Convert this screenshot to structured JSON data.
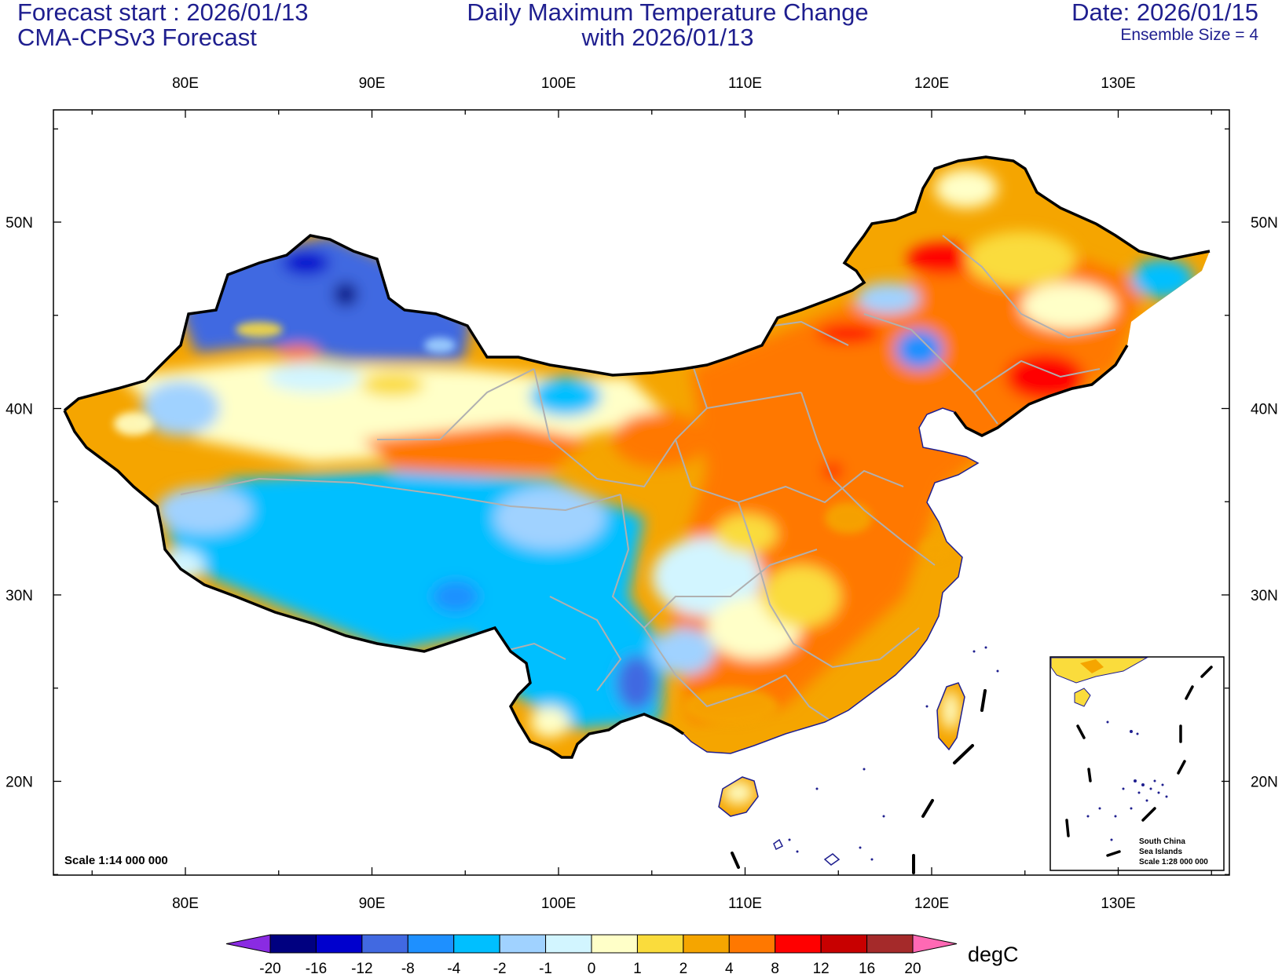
{
  "header": {
    "left_line1": "Forecast start : 2026/01/13",
    "left_line2": "CMA-CPSv3 Forecast",
    "center_line1": "Daily Maximum Temperature Change",
    "center_line2": "with 2026/01/13",
    "right_line1": "Date: 2026/01/15",
    "right_line2": "Ensemble Size = 4"
  },
  "map": {
    "lon_labels": [
      "80E",
      "90E",
      "100E",
      "110E",
      "120E",
      "130E"
    ],
    "lat_labels": [
      "50N",
      "40N",
      "30N",
      "20N"
    ],
    "scale_note": "Scale 1:14 000 000",
    "inset": {
      "line1": "South China",
      "line2": "Sea Islands",
      "line3": "Scale 1:28 000 000"
    }
  },
  "colorbar": {
    "labels": [
      "-20",
      "-16",
      "-12",
      "-8",
      "-4",
      "-2",
      "-1",
      "0",
      "1",
      "2",
      "4",
      "8",
      "12",
      "16",
      "20"
    ],
    "colors": [
      "#8a2be2",
      "#000080",
      "#0000cd",
      "#4169e1",
      "#1e90ff",
      "#00bfff",
      "#a0d2ff",
      "#d2f5ff",
      "#ffffc8",
      "#fadc3c",
      "#f5a500",
      "#ff7800",
      "#ff0000",
      "#c80000",
      "#a52a2a",
      "#ff69b4"
    ],
    "unit": "degC"
  }
}
